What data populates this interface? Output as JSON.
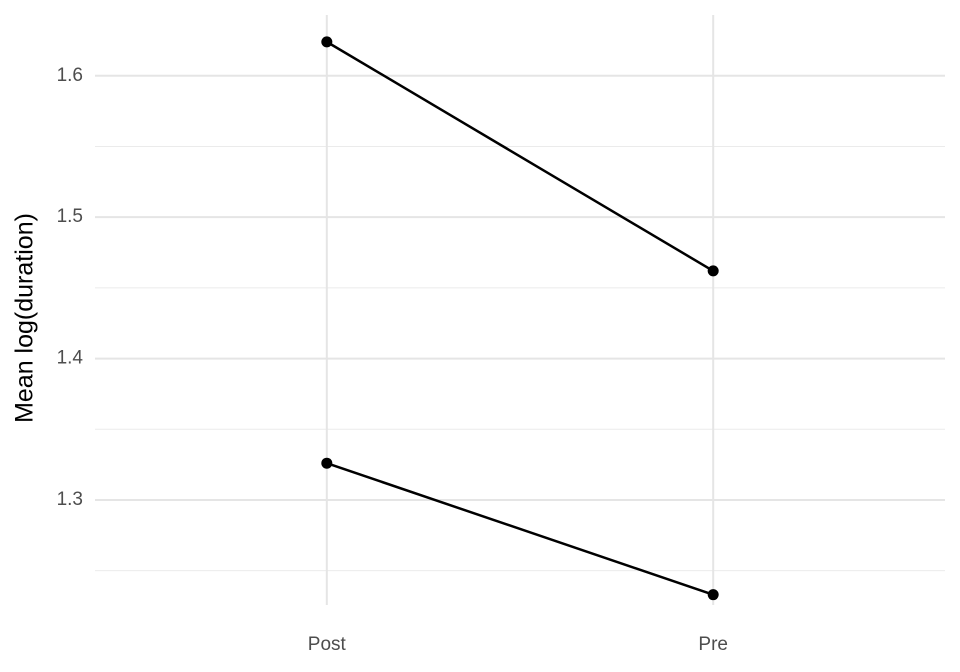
{
  "chart_data": {
    "type": "line",
    "y_label": "Mean log(duration)",
    "categories": [
      "Post",
      "Pre"
    ],
    "series": [
      {
        "color": "#000000",
        "values": [
          1.624,
          1.462
        ]
      },
      {
        "color": "#000000",
        "values": [
          1.326,
          1.233
        ]
      }
    ],
    "ylim": [
      1.2257,
      1.643
    ],
    "yticks": [
      1.3,
      1.4,
      1.5,
      1.6
    ],
    "yminor": [
      1.25,
      1.35,
      1.45,
      1.55
    ],
    "grid": true
  }
}
